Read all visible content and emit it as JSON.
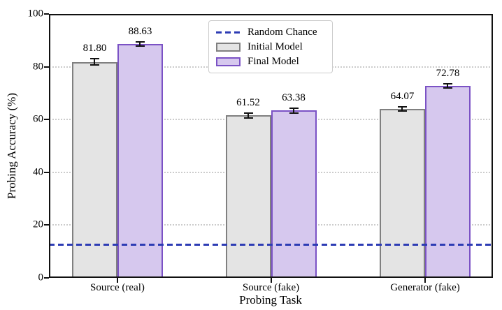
{
  "chart_data": {
    "type": "bar",
    "title": "",
    "xlabel": "Probing Task",
    "ylabel": "Probing Accuracy (%)",
    "ylim": [
      0,
      100
    ],
    "yticks": [
      0,
      20,
      40,
      60,
      80,
      100
    ],
    "grid": {
      "horizontal": true,
      "style": "dotted",
      "color": "#cccccc"
    },
    "categories": [
      "Source (real)",
      "Source (fake)",
      "Generator (fake)"
    ],
    "series": [
      {
        "name": "Initial Model",
        "values": [
          81.8,
          61.52,
          64.07
        ],
        "value_labels": [
          "81.80",
          "61.52",
          "64.07"
        ],
        "errors": [
          1.2,
          1.0,
          0.8
        ],
        "fill_color": "#e4e4e4",
        "edge_color": "#808080"
      },
      {
        "name": "Final Model",
        "values": [
          88.63,
          63.38,
          72.78
        ],
        "value_labels": [
          "88.63",
          "63.38",
          "72.78"
        ],
        "errors": [
          0.9,
          1.0,
          0.8
        ],
        "fill_color": "#d6c8ee",
        "edge_color": "#7b52c5"
      }
    ],
    "reference_line": {
      "label": "Random Chance",
      "value": 12.5,
      "color": "#2d3cb4",
      "style": "dashed"
    },
    "legend": {
      "position": "upper center",
      "entries": [
        "Random Chance",
        "Initial Model",
        "Final Model"
      ]
    },
    "axis_color": "#111111",
    "error_bar_color": "#111111"
  }
}
